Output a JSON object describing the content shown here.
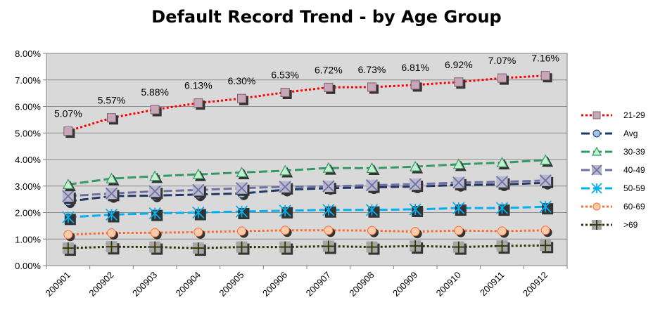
{
  "chart_data": {
    "type": "line",
    "title": "Default Record Trend - by Age Group",
    "xlabel": "",
    "ylabel": "",
    "categories": [
      "200901",
      "200902",
      "200903",
      "200904",
      "200905",
      "200906",
      "200907",
      "200908",
      "200909",
      "200910",
      "200911",
      "200912"
    ],
    "ylim": [
      0,
      8
    ],
    "y_ticks": [
      "0.00%",
      "1.00%",
      "2.00%",
      "3.00%",
      "4.00%",
      "5.00%",
      "6.00%",
      "7.00%",
      "8.00%"
    ],
    "grid": "horizontal",
    "legend_position": "right",
    "series": [
      {
        "name": "21-29",
        "color": "#ff0000",
        "dash": "dotted",
        "marker": "square",
        "marker_fill": "#c8a8b8",
        "values": [
          5.07,
          5.57,
          5.88,
          6.13,
          6.3,
          6.53,
          6.72,
          6.73,
          6.81,
          6.92,
          7.07,
          7.16
        ],
        "data_labels": [
          "5.07%",
          "5.57%",
          "5.88%",
          "6.13%",
          "6.30%",
          "6.53%",
          "6.72%",
          "6.73%",
          "6.81%",
          "6.92%",
          "7.07%",
          "7.16%"
        ]
      },
      {
        "name": "Avg",
        "color": "#1f3864",
        "dash": "dashed",
        "marker": "circle",
        "marker_fill": "#9dc3e6",
        "values": [
          2.42,
          2.62,
          2.64,
          2.68,
          2.72,
          2.86,
          2.92,
          2.95,
          2.98,
          3.04,
          3.06,
          3.12
        ]
      },
      {
        "name": "30-39",
        "color": "#339966",
        "dash": "dashed",
        "marker": "triangle",
        "marker_fill": "#c6efce",
        "values": [
          3.06,
          3.28,
          3.37,
          3.44,
          3.51,
          3.58,
          3.68,
          3.67,
          3.73,
          3.82,
          3.88,
          3.98
        ]
      },
      {
        "name": "40-49",
        "color": "#7070a0",
        "dash": "dashed",
        "marker": "x",
        "marker_fill": "#b8b8d0",
        "values": [
          2.62,
          2.72,
          2.8,
          2.85,
          2.92,
          2.97,
          2.99,
          3.03,
          3.07,
          3.13,
          3.16,
          3.21
        ]
      },
      {
        "name": "50-59",
        "color": "#00b0f0",
        "dash": "dashed",
        "marker": "asterisk",
        "marker_fill": "#ffffff",
        "values": [
          1.82,
          1.92,
          1.97,
          2.0,
          2.04,
          2.07,
          2.1,
          2.1,
          2.12,
          2.17,
          2.17,
          2.22
        ]
      },
      {
        "name": "60-69",
        "color": "#ff6a2a",
        "dash": "dotted",
        "marker": "circle",
        "marker_fill": "#f8cbad",
        "values": [
          1.17,
          1.23,
          1.24,
          1.26,
          1.3,
          1.33,
          1.33,
          1.32,
          1.28,
          1.32,
          1.3,
          1.33
        ]
      },
      {
        "name": ">69",
        "color": "#333300",
        "dash": "dotted",
        "marker": "plus",
        "marker_fill": "#a6a6a6",
        "values": [
          0.66,
          0.71,
          0.7,
          0.66,
          0.7,
          0.7,
          0.73,
          0.7,
          0.74,
          0.7,
          0.74,
          0.76
        ]
      }
    ]
  },
  "plot_area_color": "#d9d9d9"
}
